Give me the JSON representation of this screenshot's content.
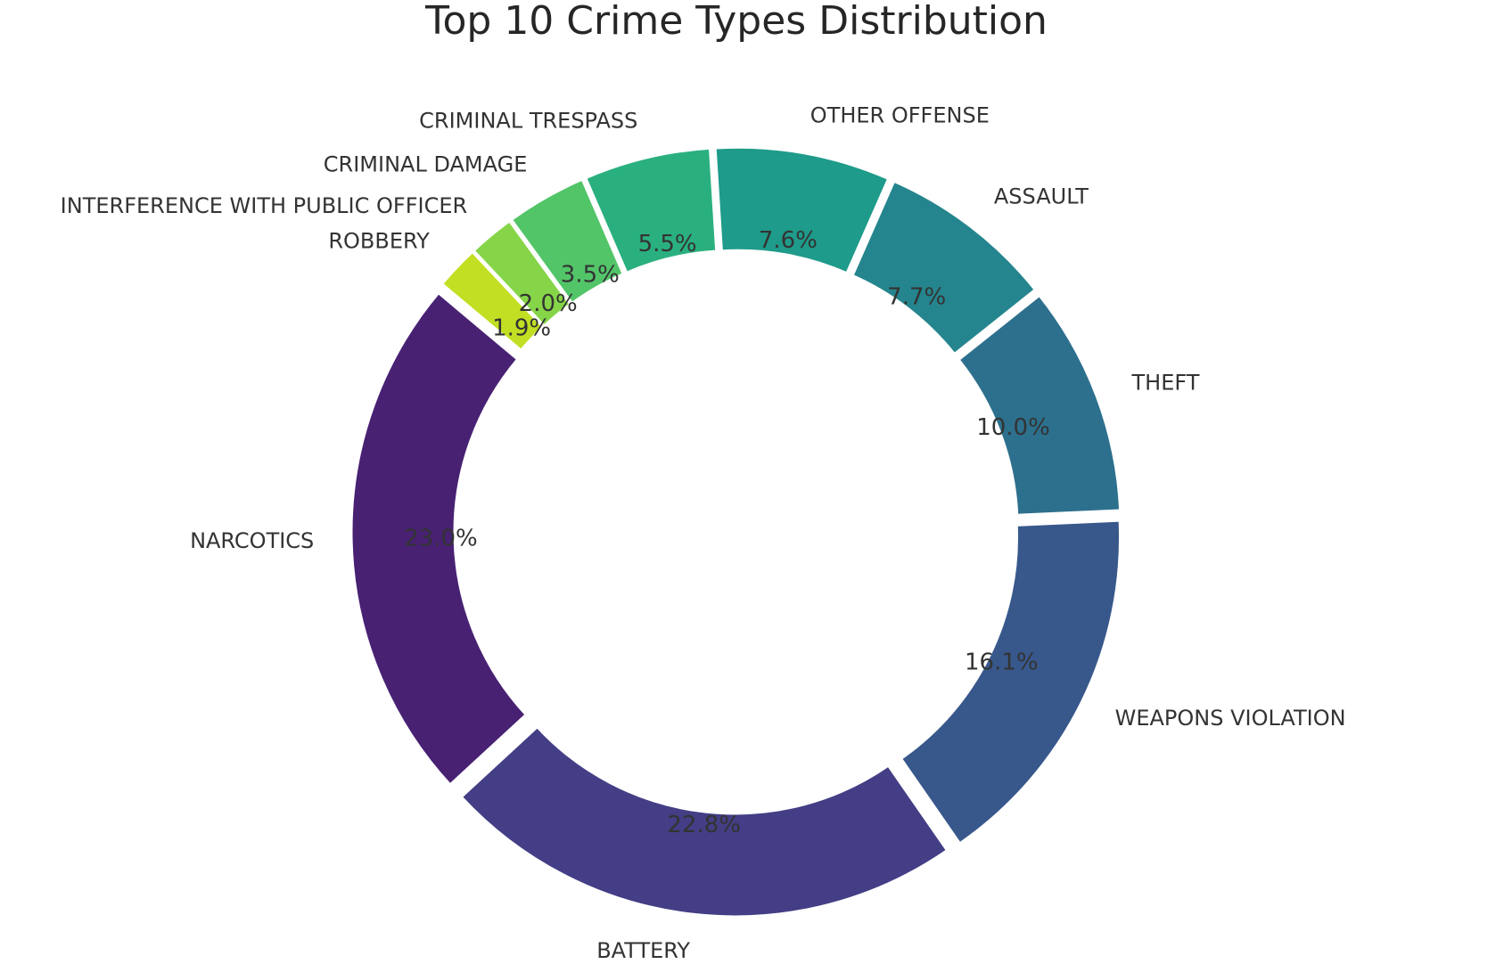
{
  "chart_data": {
    "type": "pie",
    "title": "Top 10 Crime Types Distribution",
    "donut": true,
    "start_angle_deg": 140,
    "direction": "counterclockwise",
    "exploded": true,
    "slices": [
      {
        "label": "NARCOTICS",
        "value": 23.0,
        "pct_label": "23.0%",
        "color": "#482173"
      },
      {
        "label": "BATTERY",
        "value": 22.8,
        "pct_label": "22.8%",
        "color": "#433e85"
      },
      {
        "label": "WEAPONS VIOLATION",
        "value": 16.1,
        "pct_label": "16.1%",
        "color": "#38588c"
      },
      {
        "label": "THEFT",
        "value": 10.0,
        "pct_label": "10.0%",
        "color": "#2d708e"
      },
      {
        "label": "ASSAULT",
        "value": 7.7,
        "pct_label": "7.7%",
        "color": "#25858e"
      },
      {
        "label": "OTHER OFFENSE",
        "value": 7.6,
        "pct_label": "7.6%",
        "color": "#1e9b8a"
      },
      {
        "label": "CRIMINAL TRESPASS",
        "value": 5.5,
        "pct_label": "5.5%",
        "color": "#2ab07f"
      },
      {
        "label": "CRIMINAL DAMAGE",
        "value": 3.5,
        "pct_label": "3.5%",
        "color": "#52c569"
      },
      {
        "label": "INTERFERENCE WITH PUBLIC OFFICER",
        "value": 2.0,
        "pct_label": "2.0%",
        "color": "#86d549"
      },
      {
        "label": "ROBBERY",
        "value": 1.9,
        "pct_label": "1.9%",
        "color": "#c2df23"
      }
    ]
  }
}
